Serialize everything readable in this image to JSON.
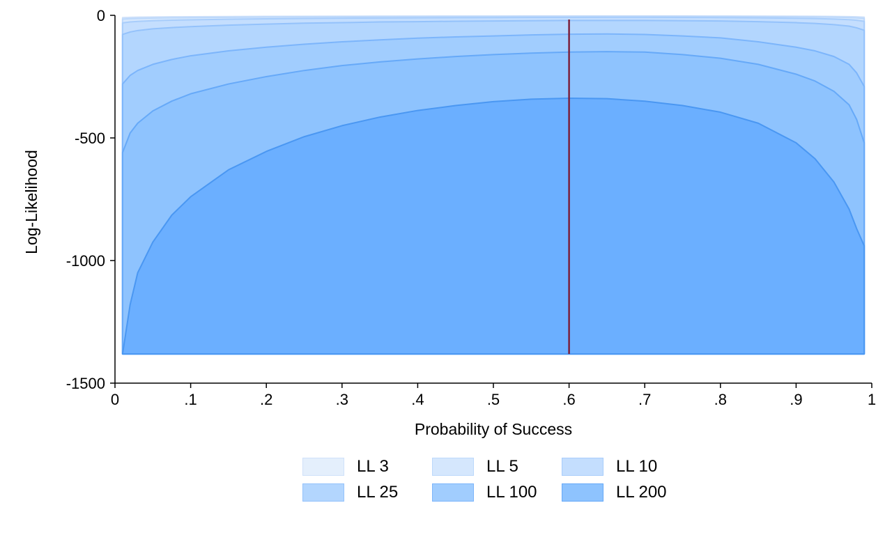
{
  "chart_data": {
    "type": "area",
    "title": "",
    "xlabel": "Probability of Success",
    "ylabel": "Log-Likelihood",
    "xlim": [
      0,
      1
    ],
    "ylim": [
      -1500,
      0
    ],
    "x_ticks": [
      {
        "value": 0,
        "label": "0"
      },
      {
        "value": 0.1,
        "label": ".1"
      },
      {
        "value": 0.2,
        "label": ".2"
      },
      {
        "value": 0.3,
        "label": ".3"
      },
      {
        "value": 0.4,
        "label": ".4"
      },
      {
        "value": 0.5,
        "label": ".5"
      },
      {
        "value": 0.6,
        "label": ".6"
      },
      {
        "value": 0.7,
        "label": ".7"
      },
      {
        "value": 0.8,
        "label": ".8"
      },
      {
        "value": 0.9,
        "label": ".9"
      },
      {
        "value": 1,
        "label": "1"
      }
    ],
    "y_ticks": [
      {
        "value": 0,
        "label": "0"
      },
      {
        "value": -500,
        "label": "-500"
      },
      {
        "value": -1000,
        "label": "-1000"
      },
      {
        "value": -1500,
        "label": "-1500"
      }
    ],
    "x": [
      0.01,
      0.02,
      0.03,
      0.05,
      0.075,
      0.1,
      0.15,
      0.2,
      0.25,
      0.3,
      0.35,
      0.4,
      0.45,
      0.5,
      0.55,
      0.6,
      0.65,
      0.7,
      0.75,
      0.8,
      0.85,
      0.9,
      0.925,
      0.95,
      0.97,
      0.98,
      0.99
    ],
    "baseline": -1381,
    "vline": {
      "x": 0.6,
      "color": "#7b1f3a"
    },
    "grid": false,
    "legend_position": "bottom",
    "series": [
      {
        "name": "LL 3",
        "fill": "#e4effc",
        "edge": "#cfe1fa",
        "values": [
          -9.3,
          -8.2,
          -7.6,
          -6.7,
          -6.1,
          -5.6,
          -4.8,
          -4.3,
          -3.9,
          -3.6,
          -3.3,
          -3.1,
          -2.9,
          -2.7,
          -2.6,
          -2.5,
          -2.5,
          -2.5,
          -2.6,
          -2.8,
          -3.1,
          -3.6,
          -4.0,
          -4.6,
          -5.4,
          -6.2,
          -7.4
        ]
      },
      {
        "name": "LL 5",
        "fill": "#d5e7fd",
        "edge": "#bcd8fb",
        "values": [
          -15.4,
          -13.6,
          -12.5,
          -11.1,
          -10.0,
          -9.2,
          -8.0,
          -7.1,
          -6.5,
          -5.9,
          -5.5,
          -5.1,
          -4.8,
          -4.6,
          -4.4,
          -4.2,
          -4.2,
          -4.2,
          -4.3,
          -4.6,
          -5.2,
          -6.0,
          -6.6,
          -7.6,
          -8.9,
          -10.2,
          -12.3
        ]
      },
      {
        "name": "LL 10",
        "fill": "#c4defe",
        "edge": "#a8cdfb",
        "values": [
          -30.8,
          -27.1,
          -25.0,
          -22.1,
          -19.9,
          -18.3,
          -15.9,
          -14.2,
          -12.9,
          -11.8,
          -10.9,
          -10.2,
          -9.6,
          -9.1,
          -8.7,
          -8.4,
          -8.2,
          -8.3,
          -8.6,
          -9.2,
          -10.3,
          -11.9,
          -13.2,
          -15.1,
          -17.7,
          -20.3,
          -24.5
        ]
      },
      {
        "name": "LL 25",
        "fill": "#b3d6fe",
        "edge": "#94c2fb",
        "values": [
          -78,
          -68,
          -62,
          -55,
          -50,
          -46,
          -40,
          -36,
          -32,
          -30,
          -27,
          -26,
          -24,
          -23,
          -22,
          -21,
          -21,
          -21,
          -22,
          -23,
          -26,
          -30,
          -33,
          -38,
          -44,
          -51,
          -61
        ]
      },
      {
        "name": "LL 100",
        "fill": "#a1cdfe",
        "edge": "#7cb5fb",
        "values": [
          -280,
          -245,
          -225,
          -200,
          -180,
          -165,
          -145,
          -130,
          -118,
          -108,
          -100,
          -93,
          -88,
          -84,
          -80,
          -77,
          -76,
          -78,
          -84,
          -92,
          -108,
          -130,
          -145,
          -168,
          -200,
          -235,
          -290
        ]
      },
      {
        "name": "LL 200",
        "fill": "#8ec3fe",
        "edge": "#66a9f8",
        "values": [
          -560,
          -480,
          -440,
          -390,
          -350,
          -320,
          -280,
          -250,
          -225,
          -205,
          -190,
          -178,
          -168,
          -160,
          -154,
          -150,
          -148,
          -150,
          -160,
          -175,
          -200,
          -240,
          -268,
          -310,
          -365,
          -425,
          -520
        ]
      },
      {
        "name": "",
        "fill": "#6bafff",
        "edge": "#4a97f2",
        "values": [
          -1381,
          -1180,
          -1050,
          -925,
          -815,
          -740,
          -630,
          -555,
          -495,
          -450,
          -415,
          -388,
          -368,
          -352,
          -342,
          -338,
          -340,
          -350,
          -368,
          -395,
          -440,
          -520,
          -585,
          -680,
          -790,
          -870,
          -940
        ]
      }
    ]
  }
}
